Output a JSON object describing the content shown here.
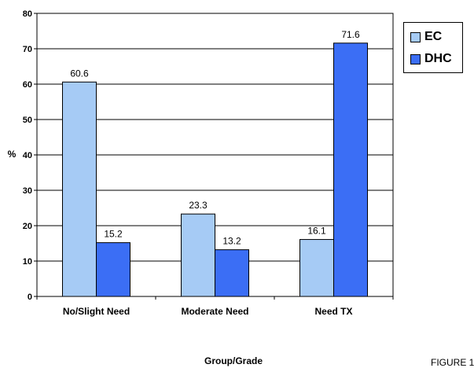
{
  "chart_data": {
    "type": "bar",
    "categories": [
      "No/Slight Need",
      "Moderate Need",
      "Need TX"
    ],
    "series": [
      {
        "name": "EC",
        "values": [
          60.6,
          23.3,
          16.1
        ],
        "color": "#a6cbf5"
      },
      {
        "name": "DHC",
        "values": [
          15.2,
          13.2,
          71.6
        ],
        "color": "#3b6ef5"
      }
    ],
    "data_labels": [
      [
        "60.6",
        "23.3",
        "16.1"
      ],
      [
        "15.2",
        "13.2",
        "71.6"
      ]
    ],
    "ylim": [
      0,
      80
    ],
    "yticks": [
      "0",
      "10",
      "20",
      "30",
      "40",
      "50",
      "60",
      "70",
      "80"
    ],
    "ylabel": "%",
    "xlabel": "Group/Grade",
    "grid": true,
    "legend": "right"
  },
  "figure_label": "FIGURE 1"
}
